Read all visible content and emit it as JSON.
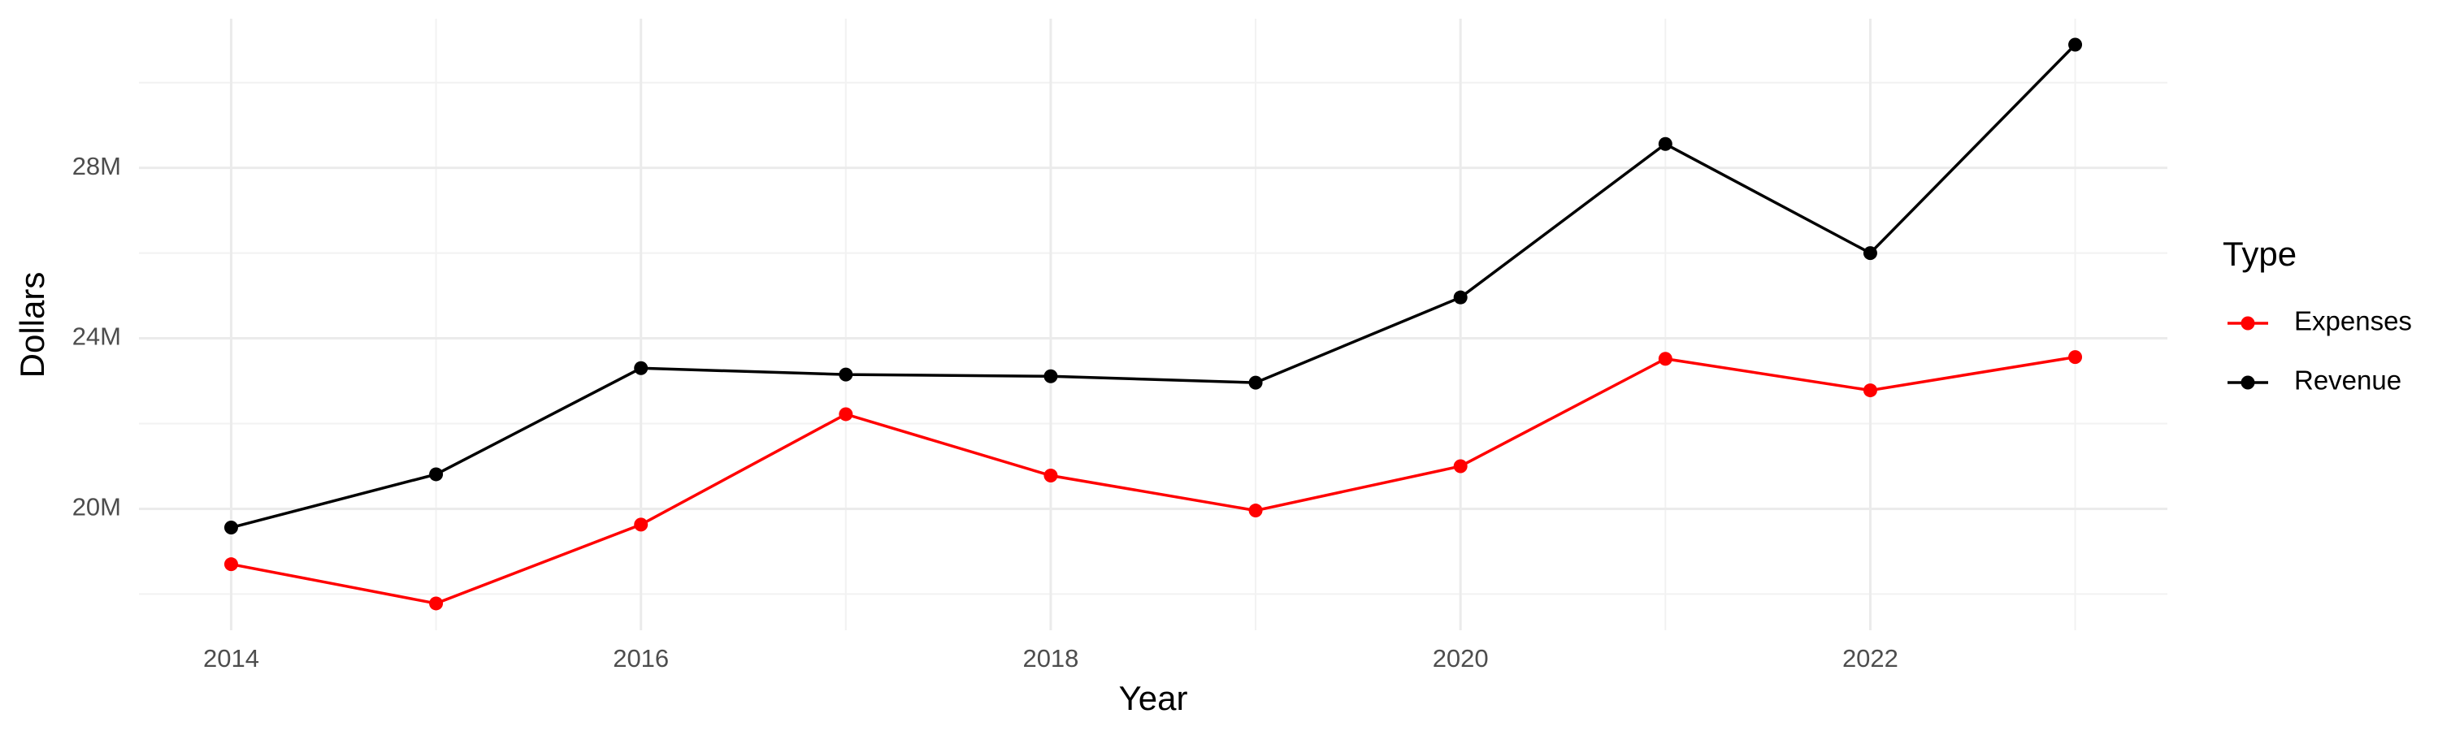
{
  "chart_data": {
    "type": "line",
    "x_label": "Year",
    "y_label": "Dollars",
    "x": [
      2014,
      2015,
      2016,
      2017,
      2018,
      2019,
      2020,
      2021,
      2022,
      2023
    ],
    "series": [
      {
        "name": "Expenses",
        "color": "#ff0000",
        "values": [
          18700000,
          17780000,
          19630000,
          22220000,
          20780000,
          19960000,
          21000000,
          23520000,
          22780000,
          23560000
        ]
      },
      {
        "name": "Revenue",
        "color": "#000000",
        "values": [
          19560000,
          20810000,
          23300000,
          23150000,
          23110000,
          22960000,
          24960000,
          28560000,
          26000000,
          30890000
        ]
      }
    ],
    "xlim": [
      2013.55,
      2023.45
    ],
    "ylim": [
      17150000,
      31500000
    ],
    "xticks": [
      2014,
      2016,
      2018,
      2020,
      2022
    ],
    "yticks": [
      {
        "value": 20000000,
        "label": "20M"
      },
      {
        "value": 24000000,
        "label": "24M"
      },
      {
        "value": 28000000,
        "label": "28M"
      }
    ],
    "grid": true,
    "legend_title": "Type",
    "legend_position": "right"
  }
}
